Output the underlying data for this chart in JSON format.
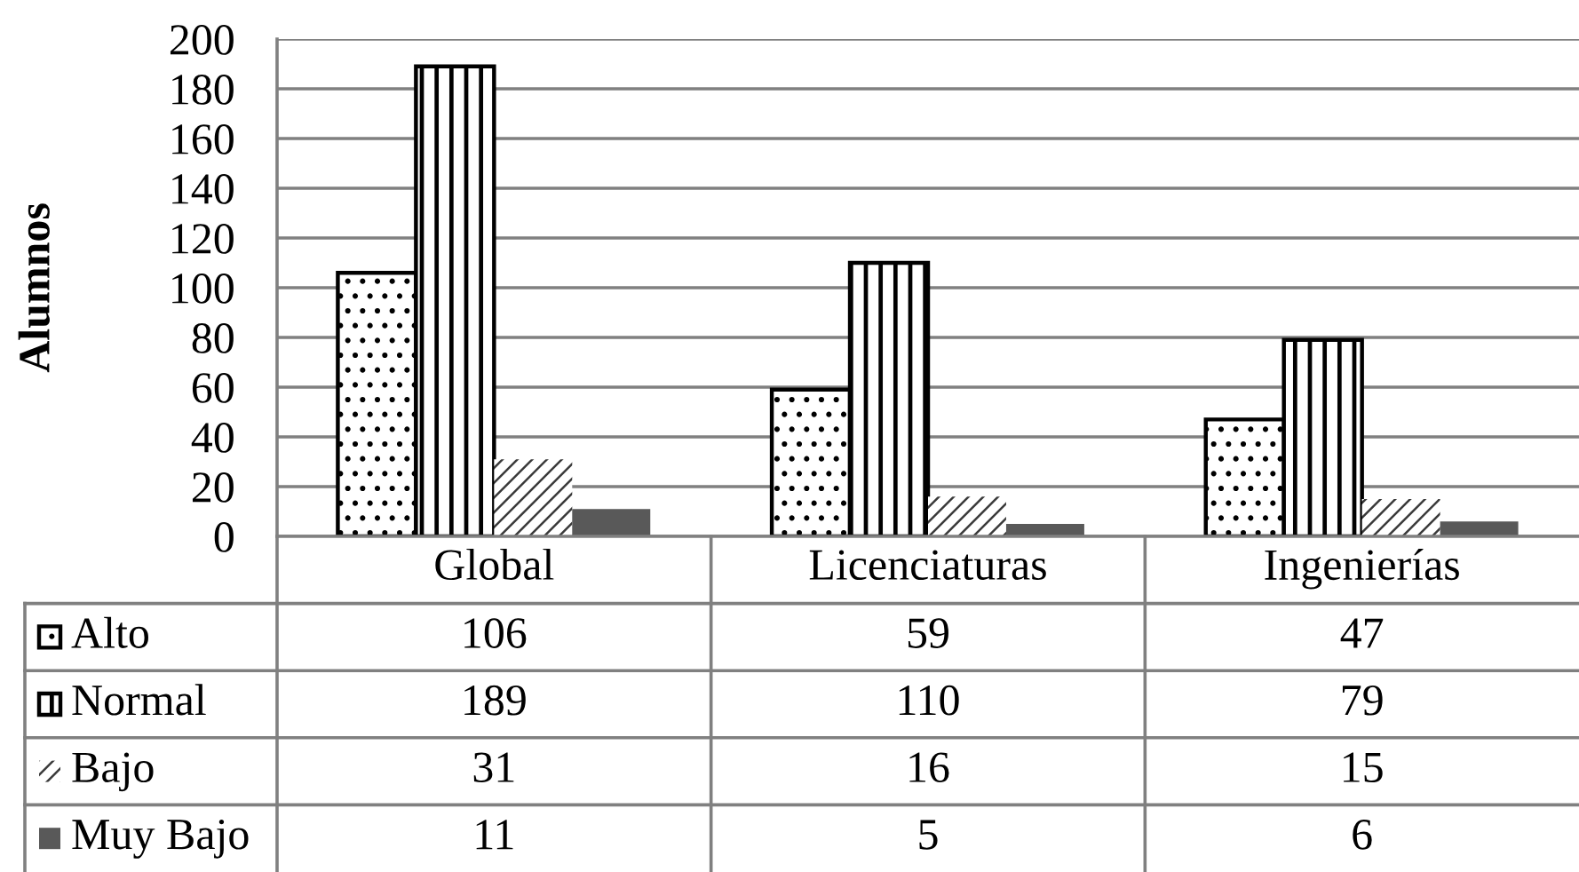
{
  "chart_data": {
    "type": "bar",
    "ylabel": "Alumnos",
    "categories": [
      "Global",
      "Licenciaturas",
      "Ingenierías"
    ],
    "series": [
      {
        "name": "Alto",
        "color": "#000000",
        "values": [
          106,
          59,
          47
        ]
      },
      {
        "name": "Normal",
        "color": "#000000",
        "values": [
          189,
          110,
          79
        ]
      },
      {
        "name": "Bajo",
        "color": "#ffffff",
        "values": [
          31,
          16,
          15
        ]
      },
      {
        "name": "Muy Bajo",
        "color": "#595959",
        "values": [
          11,
          5,
          6
        ]
      }
    ],
    "ylim": [
      0,
      200
    ],
    "yticks": [
      0,
      20,
      40,
      60,
      80,
      100,
      120,
      140,
      160,
      180,
      200
    ],
    "grid": "y",
    "legend": "bottom",
    "data_labels": true
  }
}
